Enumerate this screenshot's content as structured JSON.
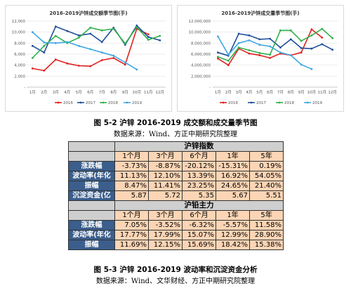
{
  "chart_data": [
    {
      "type": "line",
      "title": "2016-2019沪锌成交额季节图(手)",
      "x": [
        "1月",
        "2月",
        "3月",
        "4月",
        "5月",
        "6月",
        "7月",
        "8月",
        "9月",
        "10月",
        "11月",
        "12月"
      ],
      "yticks": [
        "12,000",
        "10,000",
        "8,000",
        "6,000",
        "4,000",
        "2,000",
        "-"
      ],
      "ylim": [
        0,
        12000
      ],
      "grid": true,
      "legend_position": "bottom",
      "series": [
        {
          "name": "2016",
          "color": "#e02020",
          "values": [
            3400,
            3000,
            5000,
            4300,
            3900,
            3800,
            4900,
            5300,
            4100,
            10600,
            9600,
            null
          ]
        },
        {
          "name": "2017",
          "color": "#1f4e9c",
          "values": [
            7500,
            6300,
            11000,
            10200,
            9400,
            9700,
            8200,
            10800,
            7700,
            11200,
            9100,
            8500
          ]
        },
        {
          "name": "2018",
          "color": "#2fb04a",
          "values": [
            5300,
            7500,
            9300,
            8000,
            9000,
            10800,
            10300,
            10600,
            7900,
            10900,
            8600,
            9300
          ]
        },
        {
          "name": "2019",
          "color": "#3fa8e0",
          "values": [
            10000,
            8100,
            8000,
            8200,
            7500,
            6900,
            6300,
            5700,
            4500,
            3200,
            null,
            null
          ]
        }
      ]
    },
    {
      "type": "line",
      "title": "2016-2019沪锌成交量季节图(手)",
      "x": [
        "1月",
        "2月",
        "3月",
        "4月",
        "5月",
        "6月",
        "7月",
        "8月",
        "9月",
        "10月",
        "11月",
        "12月"
      ],
      "yticks": [
        "12,000,000",
        "10,000,000",
        "8,000,000",
        "6,000,000",
        "4,000,000",
        "2,000,000",
        "-"
      ],
      "ylim": [
        0,
        12000000
      ],
      "grid": true,
      "legend_position": "bottom",
      "series": [
        {
          "name": "2016",
          "color": "#e02020",
          "values": [
            5200000,
            4000000,
            7000000,
            6100000,
            5800000,
            5300000,
            6100000,
            5800000,
            6300000,
            10500000,
            9000000,
            null
          ]
        },
        {
          "name": "2017",
          "color": "#1f4e9c",
          "values": [
            6300000,
            5700000,
            9700000,
            9400000,
            8700000,
            8800000,
            7200000,
            8700000,
            7100000,
            7000000,
            7800000,
            6800000
          ]
        },
        {
          "name": "2018",
          "color": "#2fb04a",
          "values": [
            5500000,
            4800000,
            7200000,
            6700000,
            6200000,
            5900000,
            10300000,
            10300000,
            8400000,
            9400000,
            10600000,
            8900000
          ]
        },
        {
          "name": "2019",
          "color": "#3fa8e0",
          "values": [
            9200000,
            5900000,
            8000000,
            8500000,
            7700000,
            7400000,
            6300000,
            5800000,
            4100000,
            3300000,
            null,
            null
          ]
        }
      ]
    }
  ],
  "captions": {
    "fig2_title": "图 5-2  沪锌 2016-2019 成交额和成交量季节图",
    "fig2_source": "数据来源：Wind、方正中期研究院整理",
    "fig3_title": "图 5-3 沪锌 2016-2019 波动率和沉淀资金分析",
    "fig3_source": "数据来源：Wind、文华财经、方正中期研究院整理"
  },
  "table": {
    "sections": [
      {
        "title": "沪锌指数",
        "headers": [
          "1个月",
          "3个月",
          "6个月",
          "1年",
          "5年"
        ],
        "rows": [
          {
            "label": "涨跌幅",
            "values": [
              "-3.73%",
              "-8.87%",
              "-20.12%",
              "-15.31%",
              "0.19%"
            ]
          },
          {
            "label": "波动率(年化",
            "values": [
              "11.13%",
              "12.10%",
              "13.39%",
              "16.92%",
              "54.05%"
            ]
          },
          {
            "label": "振幅",
            "values": [
              "8.47%",
              "11.41%",
              "23.25%",
              "24.65%",
              "21.40%"
            ]
          },
          {
            "label": "沉淀资金(亿",
            "values": [
              "5.87",
              "5.72",
              "5.35",
              "5.67",
              "5.51"
            ]
          }
        ]
      },
      {
        "title": "沪铅主力",
        "headers": [
          "1个月",
          "3个月",
          "6个月",
          "1年",
          "5年"
        ],
        "rows": [
          {
            "label": "涨跌幅",
            "values": [
              "7.05%",
              "-3.52%",
              "-6.32%",
              "-5.57%",
              "11.58%"
            ]
          },
          {
            "label": "波动率(年化",
            "values": [
              "17.77%",
              "17.99%",
              "15.07%",
              "12.99%",
              "28.90%"
            ]
          },
          {
            "label": "振幅",
            "values": [
              "11.69%",
              "12.15%",
              "15.69%",
              "18.42%",
              "15.38%"
            ]
          }
        ]
      }
    ]
  },
  "colors": {
    "label_bg": "#3b5e8c",
    "cell_bg": "#fbd5b5",
    "section_bg": "#cfcfcf"
  }
}
